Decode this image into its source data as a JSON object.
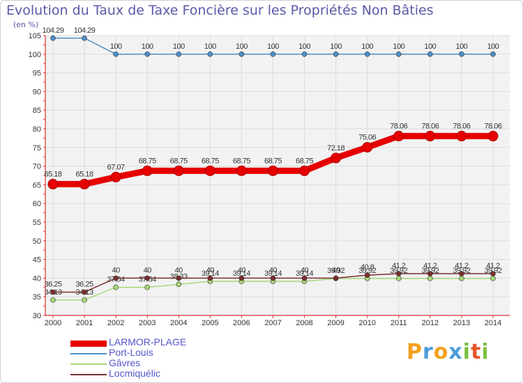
{
  "page": {
    "title": "Evolution du Taux de Taxe Foncière sur les Propriétés Non Bâties",
    "unit_label": "(en %)",
    "brand": [
      "P",
      "r",
      "o",
      "x",
      "i",
      "t",
      "i"
    ],
    "brand_colors": [
      "#f2a11e",
      "#4c9dd8",
      "#f2a11e",
      "#4c9dd8",
      "#7cc142",
      "#e8552b",
      "#7cc142"
    ]
  },
  "chart_data": {
    "type": "line",
    "x": [
      "2000",
      "2001",
      "2002",
      "2003",
      "2004",
      "2005",
      "2006",
      "2007",
      "2008",
      "2009",
      "2010",
      "2011",
      "2012",
      "2013",
      "2014"
    ],
    "ylim": [
      30,
      105
    ],
    "yticks": [
      30,
      35,
      40,
      45,
      50,
      55,
      60,
      65,
      70,
      75,
      80,
      85,
      90,
      95,
      100,
      105
    ],
    "grid": true,
    "legend_position": "bottom-left",
    "series": [
      {
        "name": "Port-Louis",
        "color": "#4d8fc7",
        "values": [
          104.29,
          104.29,
          100,
          100,
          100,
          100,
          100,
          100,
          100,
          100,
          100,
          100,
          100,
          100,
          100
        ],
        "labels": [
          "104.29",
          "104.29",
          "100",
          "100",
          "100",
          "100",
          "100",
          "100",
          "100",
          "100",
          "100",
          "100",
          "100",
          "100",
          "100"
        ],
        "emphasis": false
      },
      {
        "name": "LARMOR-PLAGE",
        "color": "#e60000",
        "values": [
          65.18,
          65.18,
          67.07,
          68.75,
          68.75,
          68.75,
          68.75,
          68.75,
          68.75,
          72.18,
          75.06,
          78.06,
          78.06,
          78.06,
          78.06
        ],
        "labels": [
          "65.18",
          "65.18",
          "67.07",
          "68.75",
          "68.75",
          "68.75",
          "68.75",
          "68.75",
          "68.75",
          "72.18",
          "75.06",
          "78.06",
          "78.06",
          "78.06",
          "78.06"
        ],
        "emphasis": true
      },
      {
        "name": "Gâvres",
        "color": "#a8d87a",
        "values": [
          34.13,
          34.13,
          37.54,
          37.54,
          38.33,
          39.14,
          39.14,
          39.14,
          39.14,
          39.92,
          39.92,
          39.92,
          39.92,
          39.92,
          39.92
        ],
        "labels": [
          "34.13",
          "34.13",
          "37.54",
          "37.54",
          "38.33",
          "39.14",
          "39.14",
          "39.14",
          "39.14",
          "39.92",
          "39.92",
          "39.92",
          "39.92",
          "39.92",
          "39.92"
        ],
        "emphasis": false
      },
      {
        "name": "Locmiquélic",
        "color": "#7b2e2e",
        "values": [
          36.25,
          36.25,
          40,
          40,
          40,
          40,
          40,
          40,
          40,
          40,
          40.8,
          41.2,
          41.2,
          41.2,
          41.2
        ],
        "labels": [
          "36.25",
          "36.25",
          "40",
          "40",
          "40",
          "40",
          "40",
          "40",
          "40",
          "40",
          "40.8",
          "41.2",
          "41.2",
          "41.2",
          "41.2"
        ],
        "emphasis": false
      }
    ],
    "legend_order": [
      "LARMOR-PLAGE",
      "Port-Louis",
      "Gâvres",
      "Locmiquélic"
    ]
  }
}
